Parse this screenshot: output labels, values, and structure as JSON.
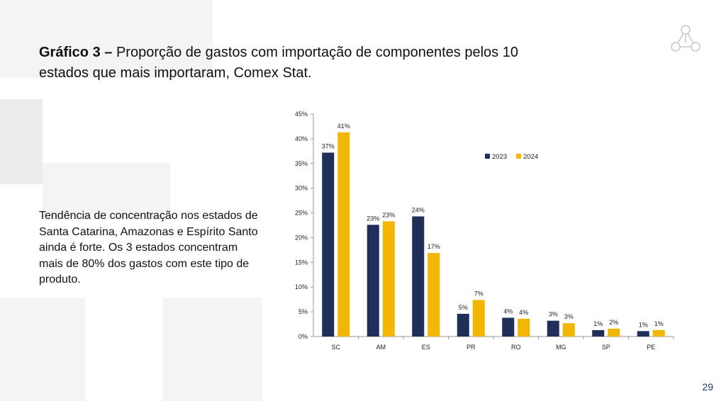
{
  "title": {
    "bold": "Gráfico 3 –",
    "text": "Proporção de gastos com importação de componentes pelos 10 estados que mais importaram, Comex Stat."
  },
  "description": "Tendência de concentração nos estados de Santa Catarina, Amazonas e Espírito Santo ainda é forte. Os 3 estados concentram mais de 80% dos gastos com este tipo de produto.",
  "page_number": "29",
  "colors": {
    "series_2023": "#1f2f5a",
    "series_2024": "#f2b705",
    "page_number": "#1d3c6e"
  },
  "logo_icon": "triangle-nodes-logo-icon",
  "chart_data": {
    "type": "bar",
    "categories": [
      "SC",
      "AM",
      "ES",
      "PR",
      "RO",
      "MG",
      "SP",
      "PE"
    ],
    "series": [
      {
        "name": "2023",
        "values": [
          37.2,
          22.6,
          24.3,
          4.6,
          3.8,
          3.2,
          1.3,
          1.1
        ],
        "labels": [
          "37%",
          "23%",
          "24%",
          "5%",
          "4%",
          "3%",
          "1%",
          "1%"
        ]
      },
      {
        "name": "2024",
        "values": [
          41.3,
          23.3,
          16.9,
          7.4,
          3.6,
          2.7,
          1.6,
          1.3
        ],
        "labels": [
          "41%",
          "23%",
          "17%",
          "7%",
          "4%",
          "3%",
          "2%",
          "1%"
        ]
      }
    ],
    "ylim": [
      0,
      45
    ],
    "yticks": [
      "0%",
      "5%",
      "10%",
      "15%",
      "20%",
      "25%",
      "30%",
      "35%",
      "40%",
      "45%"
    ],
    "legend": "top-right",
    "grid": false
  }
}
